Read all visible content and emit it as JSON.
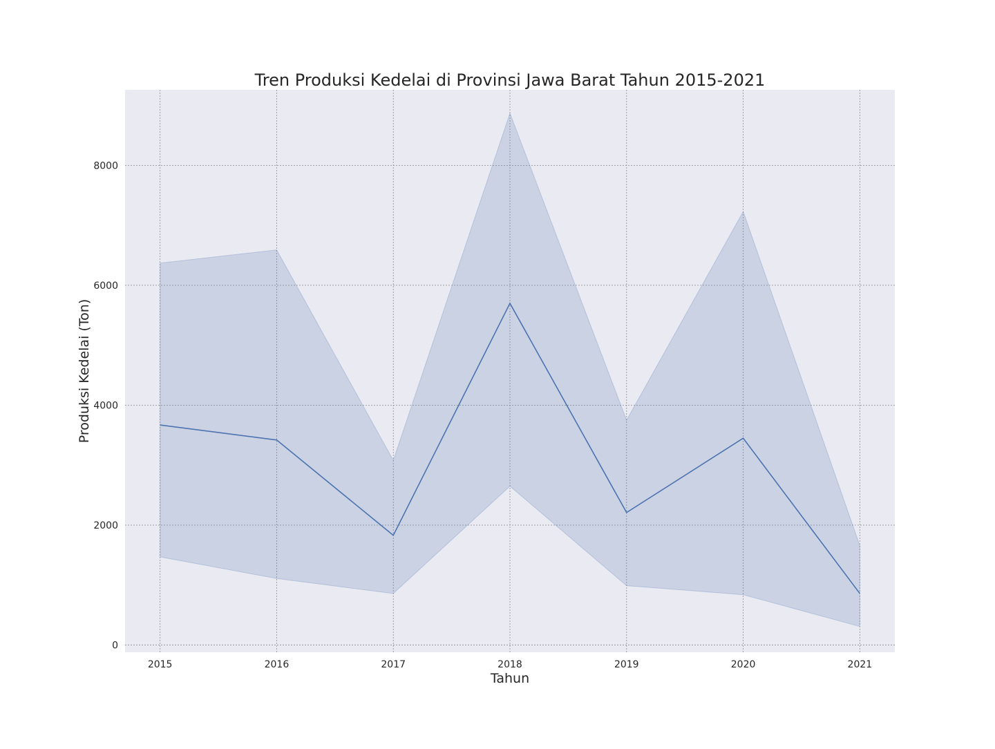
{
  "chart_data": {
    "type": "line",
    "title": "Tren Produksi Kedelai di Provinsi Jawa Barat Tahun 2015-2021",
    "xlabel": "Tahun",
    "ylabel": "Produksi Kedelai (Ton)",
    "x": [
      2015,
      2016,
      2017,
      2018,
      2019,
      2020,
      2021
    ],
    "x_tick_labels": [
      "2015",
      "2016",
      "2017",
      "2018",
      "2019",
      "2020",
      "2021"
    ],
    "y_ticks": [
      0,
      2000,
      4000,
      6000,
      8000
    ],
    "y_tick_labels": [
      "0",
      "2000",
      "4000",
      "6000",
      "8000"
    ],
    "xlim": [
      2014.7,
      2021.3
    ],
    "ylim": [
      -120,
      9260
    ],
    "grid": true,
    "series": [
      {
        "values": [
          3670,
          3420,
          1830,
          5700,
          2210,
          3450,
          860
        ],
        "ci_upper": [
          6370,
          6590,
          3080,
          8870,
          3750,
          7230,
          1660
        ],
        "ci_lower": [
          1470,
          1110,
          860,
          2650,
          990,
          840,
          310
        ]
      }
    ],
    "colors": {
      "plot_background": "#eaeaf2",
      "line": "#4c72b0",
      "band": "#4c72b0",
      "grid": "#8c8c8c"
    }
  }
}
